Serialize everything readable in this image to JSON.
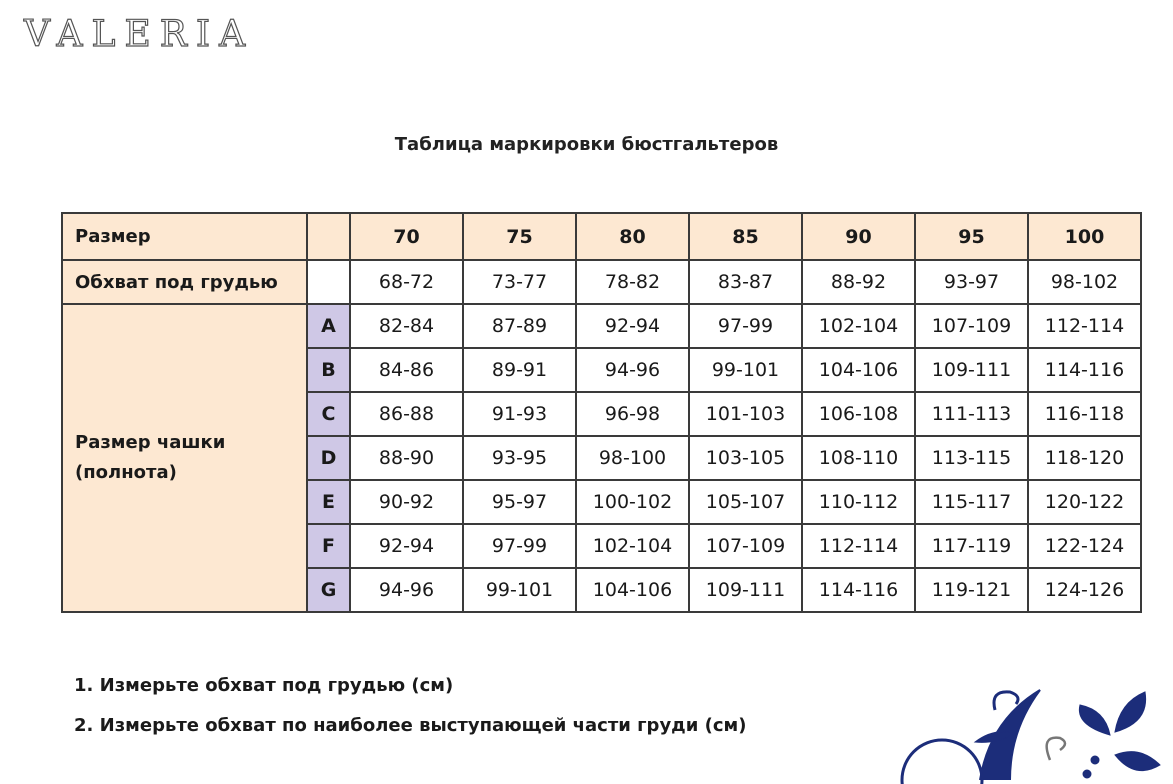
{
  "logo": "VALERIA",
  "title": "Таблица маркировки бюстгальтеров",
  "table": {
    "size_label": "Размер",
    "underbust_label": "Обхват под грудью",
    "cup_label_1": "Размер чашки",
    "cup_label_2": "(полнота)",
    "sizes": [
      "70",
      "75",
      "80",
      "85",
      "90",
      "95",
      "100"
    ],
    "underbust": [
      "68-72",
      "73-77",
      "78-82",
      "83-87",
      "88-92",
      "93-97",
      "98-102"
    ],
    "cups": [
      {
        "letter": "A",
        "values": [
          "82-84",
          "87-89",
          "92-94",
          "97-99",
          "102-104",
          "107-109",
          "112-114"
        ]
      },
      {
        "letter": "B",
        "values": [
          "84-86",
          "89-91",
          "94-96",
          "99-101",
          "104-106",
          "109-111",
          "114-116"
        ]
      },
      {
        "letter": "C",
        "values": [
          "86-88",
          "91-93",
          "96-98",
          "101-103",
          "106-108",
          "111-113",
          "116-118"
        ]
      },
      {
        "letter": "D",
        "values": [
          "88-90",
          "93-95",
          "98-100",
          "103-105",
          "108-110",
          "113-115",
          "118-120"
        ]
      },
      {
        "letter": "E",
        "values": [
          "90-92",
          "95-97",
          "100-102",
          "105-107",
          "110-112",
          "115-117",
          "120-122"
        ]
      },
      {
        "letter": "F",
        "values": [
          "92-94",
          "97-99",
          "102-104",
          "107-109",
          "112-114",
          "117-119",
          "122-124"
        ]
      },
      {
        "letter": "G",
        "values": [
          "94-96",
          "99-101",
          "104-106",
          "109-111",
          "114-116",
          "119-121",
          "124-126"
        ]
      }
    ]
  },
  "notes": [
    "1. Измерьте обхват под грудью (см)",
    "2. Измерьте обхват по наиболее выступающей части груди (см)"
  ],
  "colors": {
    "header_bg": "#fde8d2",
    "cup_letter_bg": "#cfc8e6",
    "ornament": "#1c2d7a"
  }
}
